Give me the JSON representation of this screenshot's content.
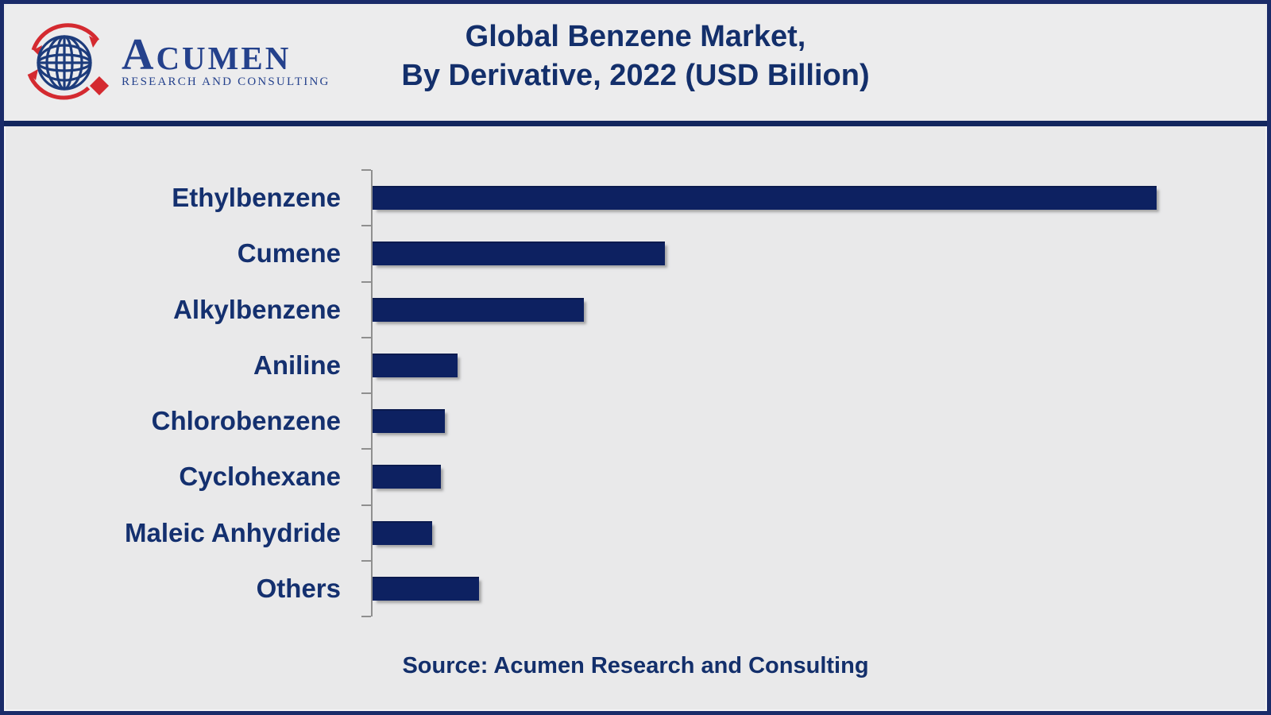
{
  "brand": {
    "name": "ACUMEN",
    "tagline": "RESEARCH AND CONSULTING"
  },
  "header": {
    "title_line1": "Global Benzene Market,",
    "title_line2": "By Derivative, 2022 (USD Billion)"
  },
  "footer": {
    "source": "Source: Acumen Research and Consulting"
  },
  "chart_data": {
    "type": "bar",
    "orientation": "horizontal",
    "title": "Global Benzene Market, By Derivative, 2022 (USD Billion)",
    "categories": [
      "Ethylbenzene",
      "Cumene",
      "Alkylbenzene",
      "Aniline",
      "Chlorobenzene",
      "Cyclohexane",
      "Maleic Anhydride",
      "Others"
    ],
    "values": [
      100,
      37.3,
      26.9,
      10.8,
      9.2,
      8.7,
      7.6,
      13.6
    ],
    "values_note": "Relative bar lengths, Ethylbenzene = 100; numeric value axis is not labeled in the figure",
    "xlabel": "",
    "ylabel": "",
    "xlim": [
      0,
      111
    ],
    "axis_tick_count": 9,
    "grid": false,
    "legend": false,
    "bar_color": "#0D2161"
  },
  "colors": {
    "background": "#E9E9EA",
    "frame_navy": "#1A2B69",
    "divider_navy": "#12265E",
    "text_navy": "#14306F",
    "bar_navy": "#0D2161",
    "axis_gray": "#8F8F8F",
    "logo_blue": "#24418C",
    "logo_red": "#D42A30"
  }
}
